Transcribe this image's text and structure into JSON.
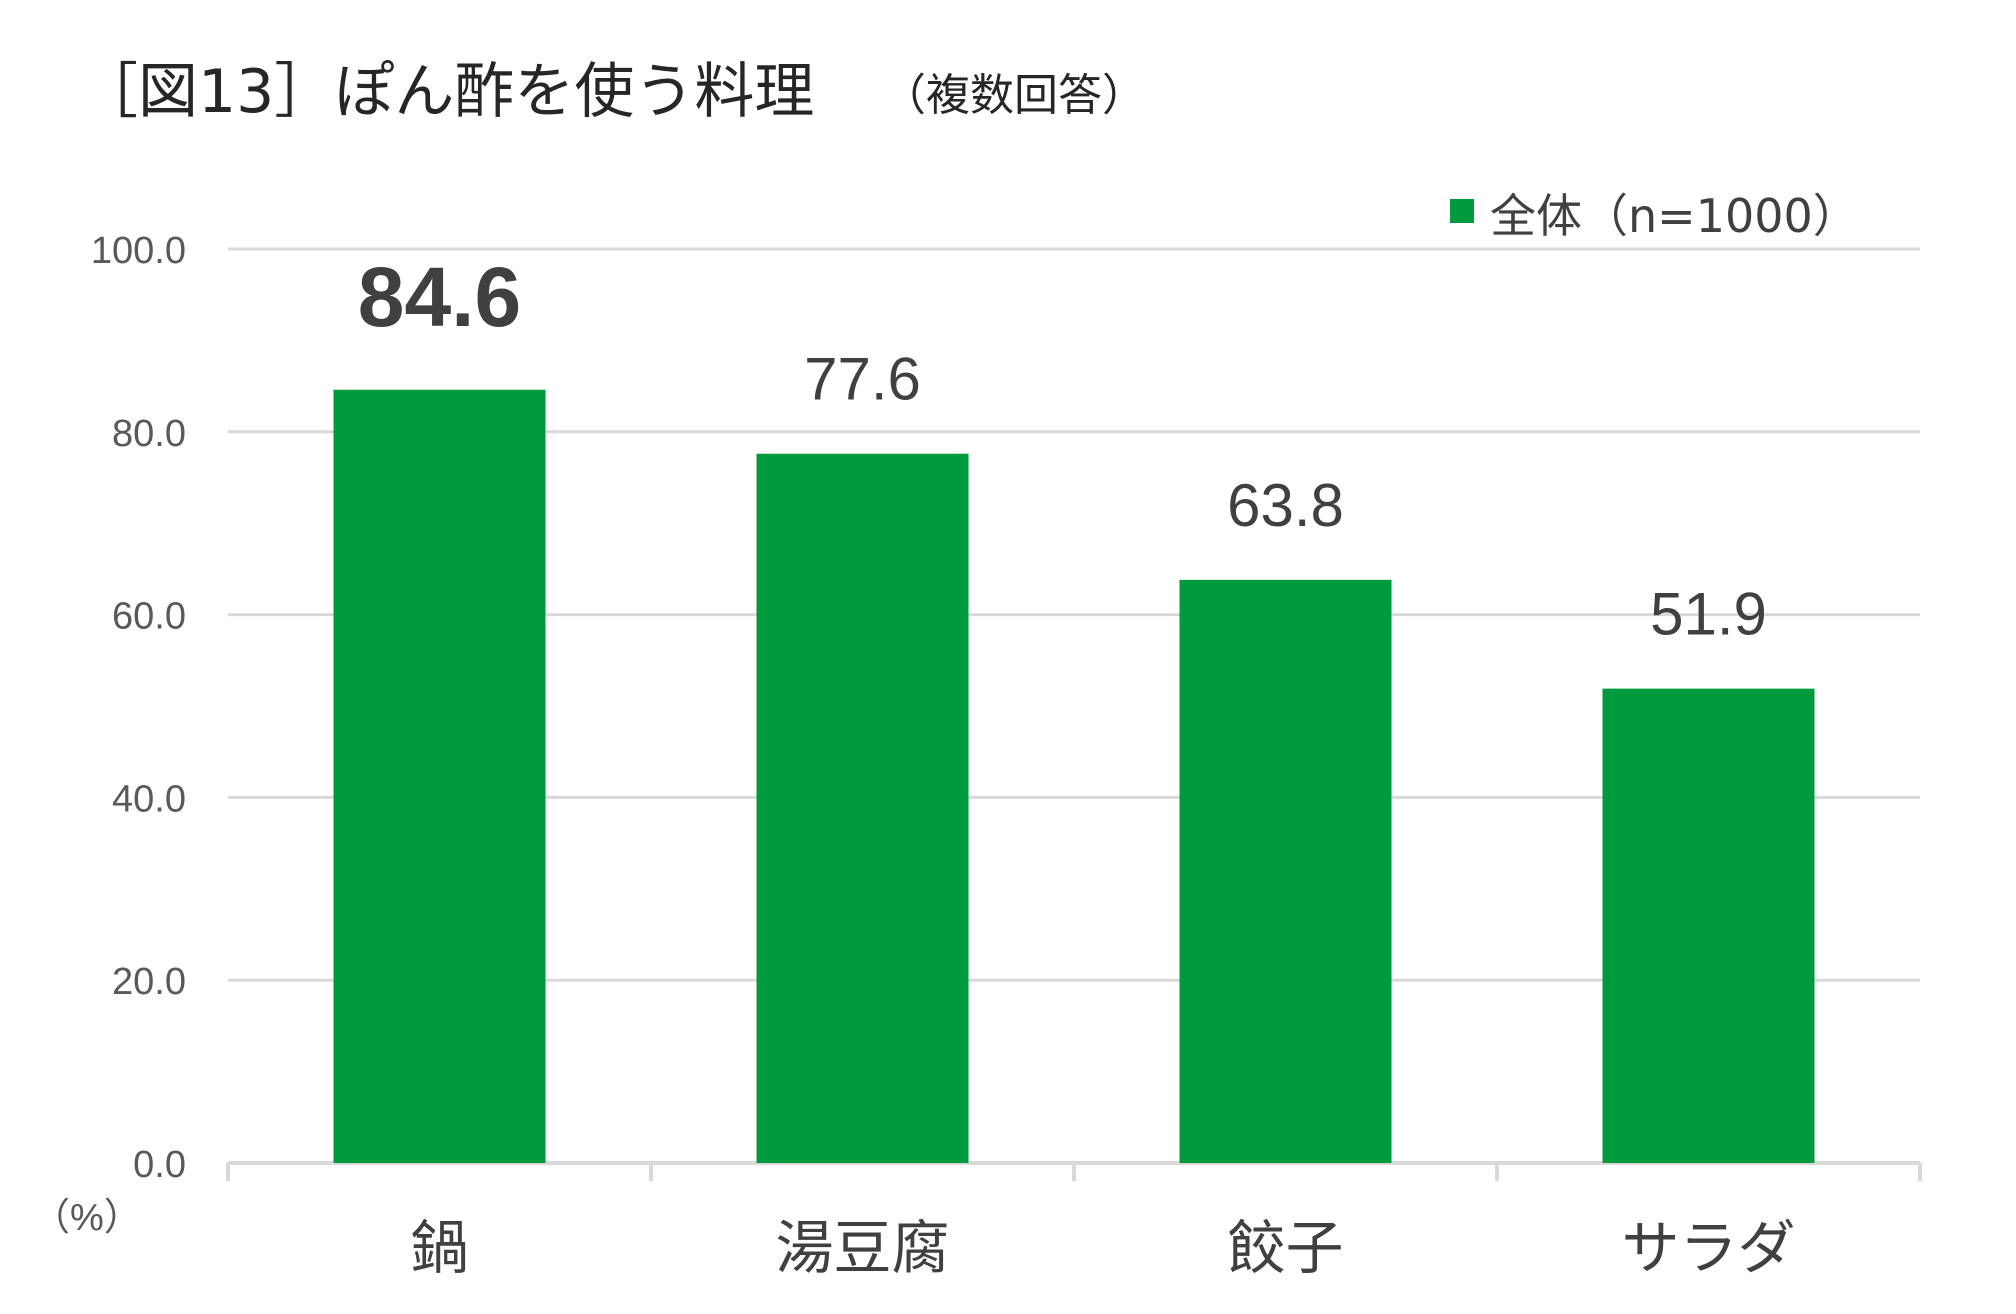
{
  "chart_data": {
    "type": "bar",
    "title": "［図13］ぽん酢を使う料理",
    "subtitle": "（複数回答）",
    "categories": [
      "鍋",
      "湯豆腐",
      "餃子",
      "サラダ"
    ],
    "series": [
      {
        "name": "全体（n=1000）",
        "values": [
          84.6,
          77.6,
          63.8,
          51.9
        ],
        "color": "#009A3E"
      }
    ],
    "value_labels": [
      "84.6",
      "77.6",
      "63.8",
      "51.9"
    ],
    "highlighted_label_index": 0,
    "yticks": [
      "0.0",
      "20.0",
      "40.0",
      "60.0",
      "80.0",
      "100.0"
    ],
    "ylim": [
      0,
      100
    ],
    "yunit": "（%）",
    "grid": true,
    "legend_position": "top-right"
  }
}
